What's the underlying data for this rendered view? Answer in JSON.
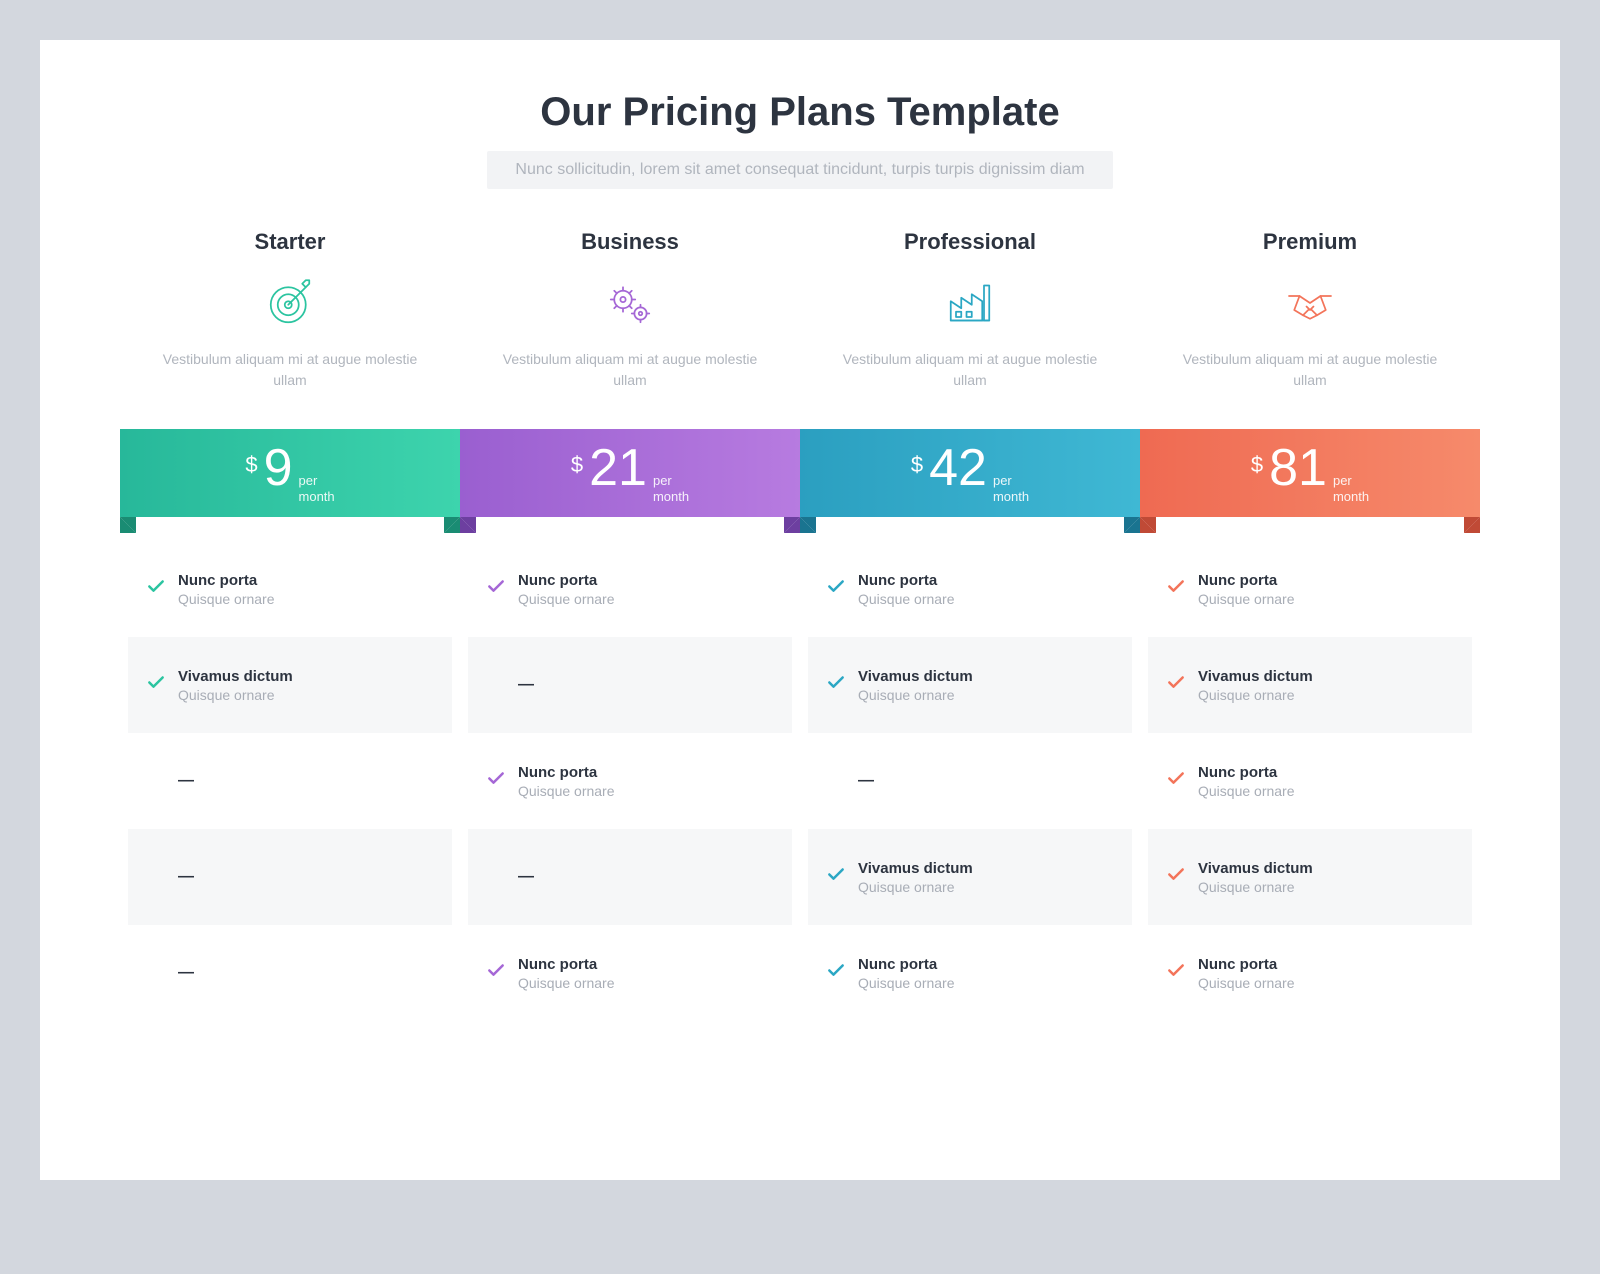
{
  "page": {
    "background_color": "#d3d7de",
    "card_background": "#ffffff"
  },
  "header": {
    "title": "Our Pricing Plans Template",
    "title_color": "#2d3440",
    "title_fontsize": 40,
    "subtitle": "Nunc sollicitudin, lorem sit amet consequat tincidunt, turpis turpis dignissim diam",
    "subtitle_color": "#b0b5bd",
    "subtitle_bg": "#f2f3f5"
  },
  "shared": {
    "currency": "$",
    "period_line1": "per",
    "period_line2": "month",
    "feature_title": "Nunc porta",
    "feature_sub": "Quisque ornare",
    "feature_title_alt": "Vivamus dictum",
    "feature_sub_alt": "Quisque ornare",
    "dash": "—",
    "row_shade_color": "rgba(230,232,236,0.35)",
    "text_color": "#2d3440",
    "muted_color": "#a8adb6"
  },
  "plans": [
    {
      "name": "Starter",
      "icon": "target-icon",
      "accent": "#2bc4a0",
      "gradient_from": "#27b89a",
      "gradient_to": "#3dd4ad",
      "fold_color": "#1a8c73",
      "desc": "Vestibulum aliquam mi at augue molestie ullam",
      "price": "9",
      "features": [
        true,
        true,
        false,
        false,
        false
      ]
    },
    {
      "name": "Business",
      "icon": "gears-icon",
      "accent": "#a567d6",
      "gradient_from": "#9a5fd0",
      "gradient_to": "#b77be0",
      "fold_color": "#6d3fa0",
      "desc": "Vestibulum aliquam mi at augue molestie ullam",
      "price": "21",
      "features": [
        true,
        false,
        true,
        false,
        true
      ]
    },
    {
      "name": "Professional",
      "icon": "factory-icon",
      "accent": "#2ba7c4",
      "gradient_from": "#2b9fc0",
      "gradient_to": "#3fb8d4",
      "fold_color": "#1a7490",
      "desc": "Vestibulum aliquam mi at augue molestie ullam",
      "price": "42",
      "features": [
        true,
        true,
        false,
        true,
        true
      ]
    },
    {
      "name": "Premium",
      "icon": "handshake-icon",
      "accent": "#f3745a",
      "gradient_from": "#ef6a52",
      "gradient_to": "#f68a6b",
      "fold_color": "#c04a36",
      "desc": "Vestibulum aliquam mi at augue molestie ullam",
      "price": "81",
      "features": [
        true,
        true,
        true,
        true,
        true
      ]
    }
  ],
  "feature_rows": [
    {
      "title_key": "feature_title",
      "sub_key": "feature_sub",
      "shaded": false
    },
    {
      "title_key": "feature_title_alt",
      "sub_key": "feature_sub_alt",
      "shaded": true
    },
    {
      "title_key": "feature_title",
      "sub_key": "feature_sub",
      "shaded": false
    },
    {
      "title_key": "feature_title_alt",
      "sub_key": "feature_sub_alt",
      "shaded": true
    },
    {
      "title_key": "feature_title",
      "sub_key": "feature_sub",
      "shaded": false
    }
  ]
}
